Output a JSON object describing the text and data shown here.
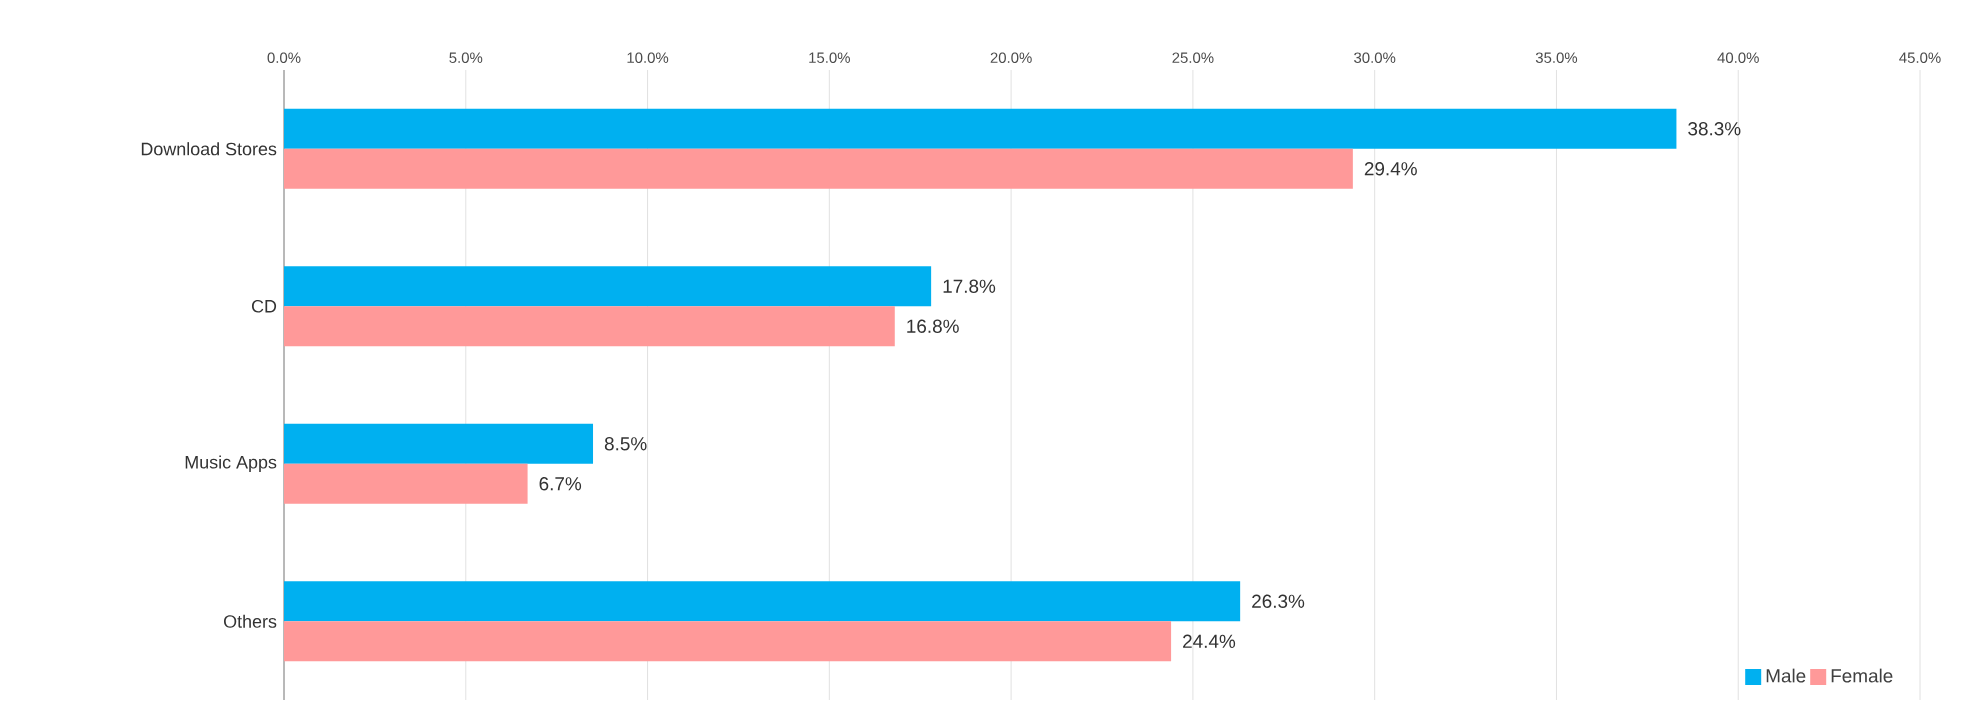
{
  "chart_data": {
    "type": "bar",
    "orientation": "horizontal",
    "categories": [
      "Download Stores",
      "CD",
      "Music Apps",
      "Others"
    ],
    "series": [
      {
        "name": "Male",
        "color": "#00b0f0",
        "values": [
          38.3,
          17.8,
          8.5,
          26.3
        ],
        "value_labels": [
          "38.3%",
          "17.8%",
          "8.5%",
          "26.3%"
        ]
      },
      {
        "name": "Female",
        "color": "#ff9999",
        "values": [
          29.4,
          16.8,
          6.7,
          24.4
        ],
        "value_labels": [
          "29.4%",
          "16.8%",
          "6.7%",
          "24.4%"
        ]
      }
    ],
    "xlim": [
      0,
      45
    ],
    "xticks": [
      {
        "value": 0,
        "label": "0.0%"
      },
      {
        "value": 5,
        "label": "5.0%"
      },
      {
        "value": 10,
        "label": "10.0%"
      },
      {
        "value": 15,
        "label": "15.0%"
      },
      {
        "value": 20,
        "label": "20.0%"
      },
      {
        "value": 25,
        "label": "25.0%"
      },
      {
        "value": 30,
        "label": "30.0%"
      },
      {
        "value": 35,
        "label": "35.0%"
      },
      {
        "value": 40,
        "label": "40.0%"
      },
      {
        "value": 45,
        "label": "45.0%"
      }
    ],
    "grid": "x",
    "legend": "bottom right"
  }
}
